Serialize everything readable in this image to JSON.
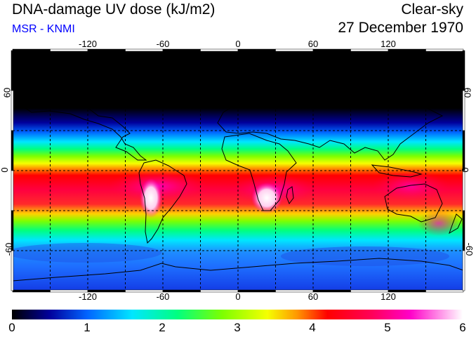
{
  "header": {
    "title": "DNA-damage UV dose (kJ/m2)",
    "subtitle": "MSR - KNMI",
    "condition": "Clear-sky",
    "date": "27 December 1970"
  },
  "map": {
    "projection": "equirectangular",
    "lon_range": [
      -180,
      180
    ],
    "lat_range": [
      -90,
      90
    ],
    "lon_ticks": [
      -120,
      -60,
      0,
      60,
      120
    ],
    "lat_ticks": [
      60,
      0,
      -60
    ],
    "gridline_lon": [
      -150,
      -120,
      -90,
      -60,
      -30,
      0,
      30,
      60,
      90,
      120,
      150
    ],
    "gridline_lat": [
      60,
      30,
      0,
      -30,
      -60
    ],
    "tick_labels_top": [
      "-120",
      "-60",
      "0",
      "60",
      "120"
    ],
    "tick_labels_bottom": [
      "-120",
      "-60",
      "0",
      "60",
      "120"
    ],
    "tick_labels_left": [
      "60",
      "0",
      "-60"
    ],
    "tick_labels_right": [
      "60",
      "0",
      "-60"
    ],
    "colors": {
      "background": "#000000",
      "gridline": "#000000",
      "coastline": "#000000"
    }
  },
  "colorbar": {
    "min": 0,
    "max": 6,
    "labels": [
      "0",
      "1",
      "2",
      "3",
      "4",
      "5",
      "6"
    ],
    "stops": [
      {
        "value": 0.0,
        "color": "#000000"
      },
      {
        "value": 0.5,
        "color": "#00009b"
      },
      {
        "value": 1.0,
        "color": "#0064ff"
      },
      {
        "value": 1.6,
        "color": "#00e6ff"
      },
      {
        "value": 2.2,
        "color": "#00ff80"
      },
      {
        "value": 2.8,
        "color": "#7dff00"
      },
      {
        "value": 3.4,
        "color": "#f5ff00"
      },
      {
        "value": 3.8,
        "color": "#ff9600"
      },
      {
        "value": 4.2,
        "color": "#ff0000"
      },
      {
        "value": 4.8,
        "color": "#ff005a"
      },
      {
        "value": 5.3,
        "color": "#ff00c8"
      },
      {
        "value": 6.0,
        "color": "#ffffff"
      }
    ]
  }
}
